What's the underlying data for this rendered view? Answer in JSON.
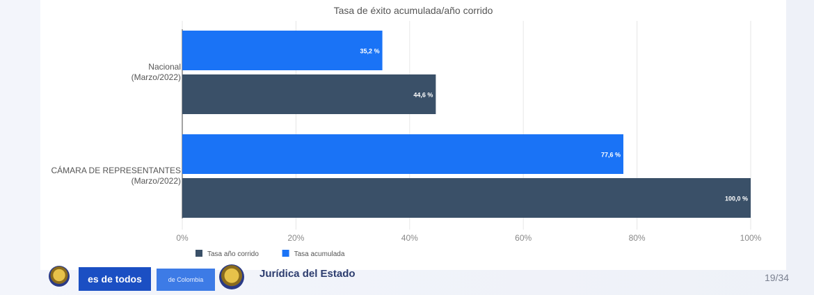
{
  "chart_data": {
    "type": "bar",
    "orientation": "horizontal",
    "title": "Tasa de éxito acumulada/año corrido",
    "categories": [
      [
        "Nacional",
        "(Marzo/2022)"
      ],
      [
        "CÁMARA DE REPRESENTANTES",
        "(Marzo/2022)"
      ]
    ],
    "series": [
      {
        "name": "Tasa acumulada",
        "color": "#1a73f6",
        "values": [
          35.2,
          77.6
        ],
        "labels": [
          "35,2 %",
          "77,6 %"
        ]
      },
      {
        "name": "Tasa año corrido",
        "color": "#3a5068",
        "values": [
          44.6,
          100.0
        ],
        "labels": [
          "44,6 %",
          "100,0 %"
        ]
      }
    ],
    "legend_order": [
      "Tasa año corrido",
      "Tasa acumulada"
    ],
    "xlim": [
      0,
      100
    ],
    "xticks": [
      0,
      20,
      40,
      60,
      80,
      100
    ],
    "xtick_labels": [
      "0%",
      "20%",
      "40%",
      "60%",
      "80%",
      "100%"
    ],
    "legend_position": "bottom-left",
    "grid": "vertical"
  },
  "footer": {
    "brand_badge": "es de todos",
    "brand_sub": "de Colombia",
    "entity_name": "Jurídica del Estado",
    "page_number": "19/34"
  }
}
